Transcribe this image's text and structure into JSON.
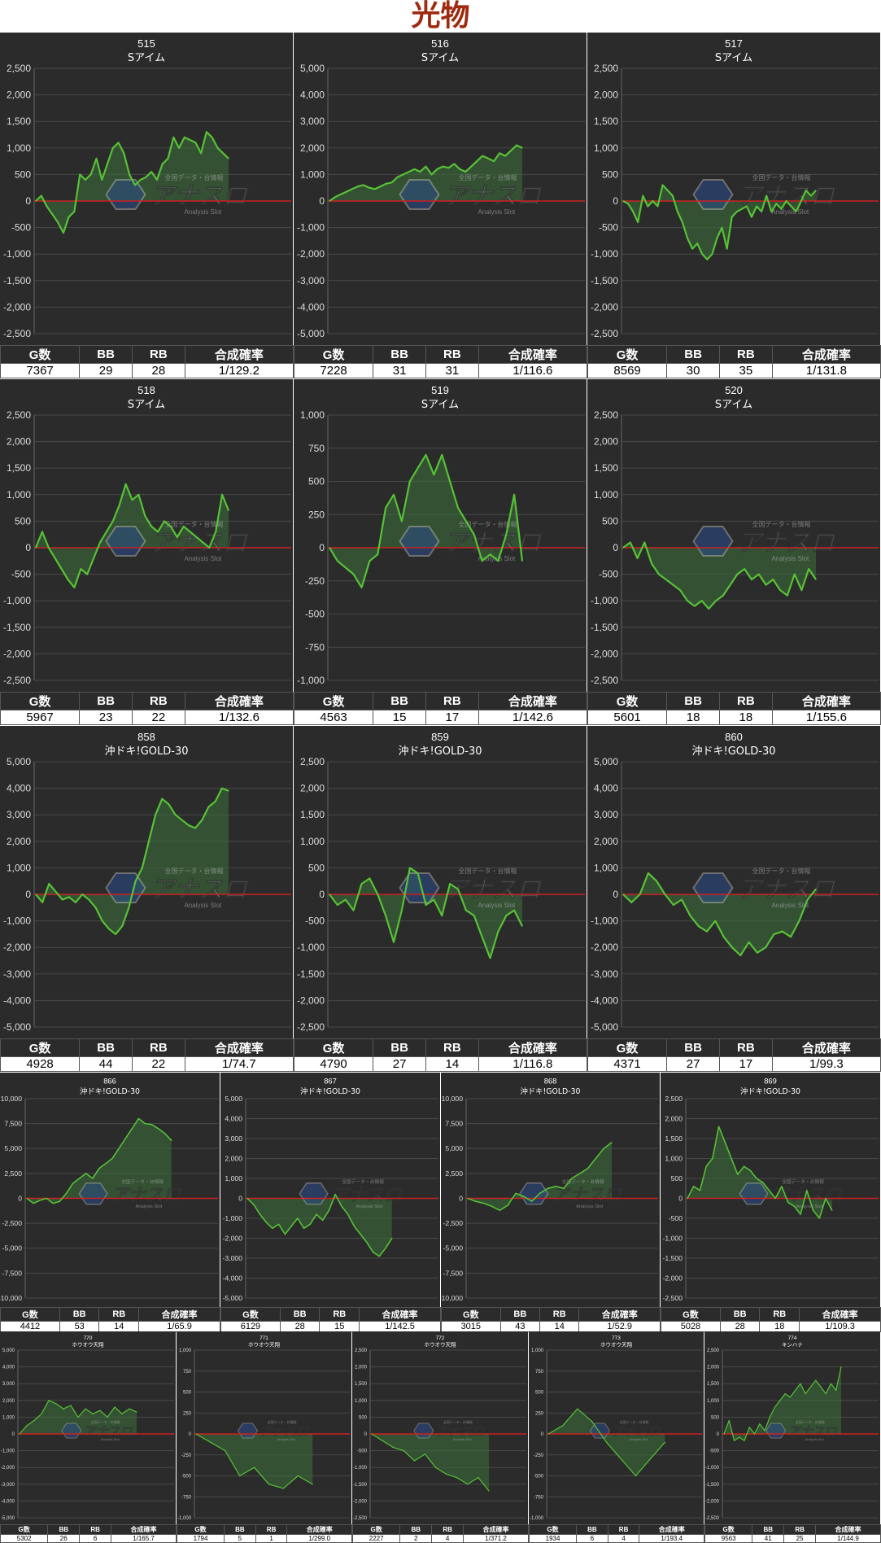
{
  "page": {
    "title": "光物"
  },
  "stats_header": {
    "g": "G数",
    "bb": "BB",
    "rb": "RB",
    "prob": "合成確率"
  },
  "watermark": {
    "text": "アナスロ",
    "sub": "Analysis Slot",
    "top": "全国データ・台情報"
  },
  "colors": {
    "background": "#2b2b2b",
    "line": "#57c236",
    "zero_line": "#cc2222",
    "fill": "#3a6b3a",
    "grid": "#4a4a4a",
    "title_color": "#9e2a10"
  },
  "chart_data": [
    {
      "type": "area",
      "machine_no": "515",
      "machine_name": "Sアイム",
      "ylim": [
        -2500,
        2500
      ],
      "yticks": [
        "2,500",
        "2,000",
        "1,500",
        "1,000",
        "500",
        "0",
        "-500",
        "-1,000",
        "-1,500",
        "-2,000",
        "-2,500"
      ],
      "stats": {
        "g": "7367",
        "bb": "29",
        "rb": "28",
        "prob": "1/129.2"
      },
      "values": [
        0,
        100,
        -100,
        -250,
        -400,
        -600,
        -300,
        -200,
        500,
        400,
        500,
        800,
        400,
        700,
        1000,
        1100,
        900,
        500,
        300,
        400,
        450,
        550,
        400,
        700,
        800,
        1200,
        1000,
        1200,
        1150,
        1100,
        900,
        1300,
        1200,
        1000,
        900,
        800
      ]
    },
    {
      "type": "area",
      "machine_no": "516",
      "machine_name": "Sアイム",
      "ylim": [
        -5000,
        5000
      ],
      "yticks": [
        "5,000",
        "4,000",
        "3,000",
        "2,000",
        "1,000",
        "0",
        "-1,000",
        "-2,000",
        "-3,000",
        "-4,000",
        "-5,000"
      ],
      "stats": {
        "g": "7228",
        "bb": "31",
        "rb": "31",
        "prob": "1/116.6"
      },
      "values": [
        0,
        150,
        250,
        350,
        450,
        550,
        600,
        500,
        450,
        550,
        650,
        700,
        900,
        1000,
        1100,
        1200,
        1100,
        1300,
        1000,
        1200,
        1300,
        1250,
        1400,
        1200,
        1100,
        1300,
        1500,
        1700,
        1600,
        1500,
        1800,
        1700,
        1900,
        2100,
        2000
      ]
    },
    {
      "type": "area",
      "machine_no": "517",
      "machine_name": "Sアイム",
      "ylim": [
        -2500,
        2500
      ],
      "yticks": [
        "2,500",
        "2,000",
        "1,500",
        "1,000",
        "500",
        "0",
        "-500",
        "-1,000",
        "-1,500",
        "-2,000",
        "-2,500"
      ],
      "stats": {
        "g": "8569",
        "bb": "30",
        "rb": "35",
        "prob": "1/131.8"
      },
      "values": [
        0,
        -50,
        -200,
        -400,
        100,
        -100,
        0,
        -100,
        300,
        200,
        100,
        -200,
        -400,
        -700,
        -900,
        -800,
        -1000,
        -1100,
        -1000,
        -700,
        -500,
        -900,
        -300,
        -200,
        -150,
        -100,
        -300,
        -100,
        -200,
        100,
        -200,
        -50,
        -150,
        0,
        -100,
        -200,
        0,
        200,
        100,
        200
      ]
    },
    {
      "type": "area",
      "machine_no": "518",
      "machine_name": "Sアイム",
      "ylim": [
        -2500,
        2500
      ],
      "yticks": [
        "2,500",
        "2,000",
        "1,500",
        "1,000",
        "500",
        "0",
        "-500",
        "-1,000",
        "-1,500",
        "-2,000",
        "-2,500"
      ],
      "stats": {
        "g": "5967",
        "bb": "23",
        "rb": "22",
        "prob": "1/132.6"
      },
      "values": [
        0,
        300,
        0,
        -200,
        -400,
        -600,
        -750,
        -400,
        -500,
        -200,
        100,
        300,
        500,
        800,
        1200,
        900,
        1000,
        600,
        400,
        300,
        500,
        400,
        200,
        400,
        300,
        200,
        100,
        0,
        300,
        1000,
        700
      ]
    },
    {
      "type": "area",
      "machine_no": "519",
      "machine_name": "Sアイム",
      "ylim": [
        -1000,
        1000
      ],
      "yticks": [
        "1,000",
        "750",
        "500",
        "250",
        "0",
        "-250",
        "-500",
        "-750",
        "-1,000"
      ],
      "stats": {
        "g": "4563",
        "bb": "15",
        "rb": "17",
        "prob": "1/142.6"
      },
      "values": [
        0,
        -100,
        -150,
        -200,
        -300,
        -100,
        -50,
        300,
        400,
        200,
        500,
        600,
        700,
        550,
        700,
        500,
        300,
        200,
        100,
        -100,
        -50,
        -100,
        100,
        400,
        -100
      ]
    },
    {
      "type": "area",
      "machine_no": "520",
      "machine_name": "Sアイム",
      "ylim": [
        -2500,
        2500
      ],
      "yticks": [
        "2,500",
        "2,000",
        "1,500",
        "1,000",
        "500",
        "0",
        "-500",
        "-1,000",
        "-1,500",
        "-2,000",
        "-2,500"
      ],
      "stats": {
        "g": "5601",
        "bb": "18",
        "rb": "18",
        "prob": "1/155.6"
      },
      "values": [
        0,
        100,
        -200,
        100,
        -300,
        -500,
        -600,
        -700,
        -800,
        -1000,
        -1100,
        -1000,
        -1150,
        -1000,
        -900,
        -700,
        -500,
        -400,
        -600,
        -500,
        -700,
        -600,
        -800,
        -900,
        -500,
        -800,
        -400,
        -600
      ]
    },
    {
      "type": "area",
      "machine_no": "858",
      "machine_name": "沖ドキ!GOLD-30",
      "ylim": [
        -5000,
        5000
      ],
      "yticks": [
        "5,000",
        "4,000",
        "3,000",
        "2,000",
        "1,000",
        "0",
        "-1,000",
        "-2,000",
        "-3,000",
        "-4,000",
        "-5,000"
      ],
      "stats": {
        "g": "4928",
        "bb": "44",
        "rb": "22",
        "prob": "1/74.7"
      },
      "values": [
        0,
        -300,
        400,
        100,
        -200,
        -100,
        -300,
        0,
        -200,
        -500,
        -1000,
        -1300,
        -1500,
        -1200,
        -500,
        500,
        1000,
        2000,
        3000,
        3600,
        3400,
        3000,
        2800,
        2600,
        2500,
        2800,
        3300,
        3500,
        4000,
        3900
      ]
    },
    {
      "type": "area",
      "machine_no": "859",
      "machine_name": "沖ドキ!GOLD-30",
      "ylim": [
        -2500,
        2500
      ],
      "yticks": [
        "2,500",
        "2,000",
        "1,500",
        "1,000",
        "500",
        "0",
        "-500",
        "-1,000",
        "-1,500",
        "-2,000",
        "-2,500"
      ],
      "stats": {
        "g": "4790",
        "bb": "27",
        "rb": "14",
        "prob": "1/116.8"
      },
      "values": [
        0,
        -200,
        -100,
        -300,
        200,
        300,
        0,
        -400,
        -900,
        -300,
        500,
        400,
        -200,
        -100,
        -400,
        200,
        100,
        -300,
        -400,
        -800,
        -1200,
        -700,
        -400,
        -300,
        -600
      ]
    },
    {
      "type": "area",
      "machine_no": "860",
      "machine_name": "沖ドキ!GOLD-30",
      "ylim": [
        -5000,
        5000
      ],
      "yticks": [
        "5,000",
        "4,000",
        "3,000",
        "2,000",
        "1,000",
        "0",
        "-1,000",
        "-2,000",
        "-3,000",
        "-4,000",
        "-5,000"
      ],
      "stats": {
        "g": "4371",
        "bb": "27",
        "rb": "17",
        "prob": "1/99.3"
      },
      "values": [
        0,
        -300,
        0,
        800,
        500,
        0,
        -400,
        -200,
        -800,
        -1200,
        -1400,
        -1000,
        -1600,
        -2000,
        -2300,
        -1800,
        -2200,
        -2000,
        -1500,
        -1400,
        -1600,
        -1000,
        -200,
        200
      ]
    },
    {
      "type": "area",
      "machine_no": "866",
      "machine_name": "沖ドキ!GOLD-30",
      "ylim": [
        -10000,
        10000
      ],
      "yticks": [
        "10,000",
        "7,500",
        "5,000",
        "2,500",
        "0",
        "-2,500",
        "-5,000",
        "-7,500",
        "-10,000"
      ],
      "stats": {
        "g": "4412",
        "bb": "53",
        "rb": "14",
        "prob": "1/65.9"
      },
      "values": [
        0,
        -500,
        -200,
        0,
        -500,
        -300,
        500,
        1500,
        2000,
        2500,
        2000,
        3000,
        3500,
        4000,
        5000,
        6000,
        7000,
        8000,
        7500,
        7400,
        7000,
        6500,
        5800
      ]
    },
    {
      "type": "area",
      "machine_no": "867",
      "machine_name": "沖ドキ!GOLD-30",
      "ylim": [
        -5000,
        5000
      ],
      "yticks": [
        "5,000",
        "4,000",
        "3,000",
        "2,000",
        "1,000",
        "0",
        "-1,000",
        "-2,000",
        "-3,000",
        "-4,000",
        "-5,000"
      ],
      "stats": {
        "g": "6129",
        "bb": "28",
        "rb": "15",
        "prob": "1/142.5"
      },
      "values": [
        0,
        -300,
        -800,
        -1200,
        -1500,
        -1300,
        -1800,
        -1400,
        -1000,
        -1500,
        -1300,
        -800,
        -1100,
        -600,
        200,
        -400,
        -800,
        -1400,
        -1800,
        -2200,
        -2700,
        -2900,
        -2500,
        -2000
      ]
    },
    {
      "type": "area",
      "machine_no": "868",
      "machine_name": "沖ドキ!GOLD-30",
      "ylim": [
        -10000,
        10000
      ],
      "yticks": [
        "10,000",
        "7,500",
        "5,000",
        "2,500",
        "0",
        "-2,500",
        "-5,000",
        "-7,500",
        "-10,000"
      ],
      "stats": {
        "g": "3015",
        "bb": "43",
        "rb": "14",
        "prob": "1/52.9"
      },
      "values": [
        0,
        -300,
        -500,
        -800,
        -1200,
        -700,
        500,
        200,
        -300,
        500,
        1000,
        1200,
        1000,
        2000,
        2500,
        3000,
        4000,
        5000,
        5600
      ]
    },
    {
      "type": "area",
      "machine_no": "869",
      "machine_name": "沖ドキ!GOLD-30",
      "ylim": [
        -2500,
        2500
      ],
      "yticks": [
        "2,500",
        "2,000",
        "1,500",
        "1,000",
        "500",
        "0",
        "-500",
        "-1,000",
        "-1,500",
        "-2,000",
        "-2,500"
      ],
      "stats": {
        "g": "5028",
        "bb": "28",
        "rb": "18",
        "prob": "1/109.3"
      },
      "values": [
        0,
        300,
        200,
        800,
        1000,
        1800,
        1400,
        1000,
        600,
        800,
        700,
        500,
        400,
        200,
        0,
        300,
        -100,
        -200,
        -400,
        200,
        -300,
        -500,
        0,
        -300
      ]
    },
    {
      "type": "area",
      "machine_no": "770",
      "machine_name": "ホウオウ天翔",
      "ylim": [
        -5000,
        5000
      ],
      "yticks": [
        "5,000",
        "4,000",
        "3,000",
        "2,000",
        "1,000",
        "0",
        "-1,000",
        "-2,000",
        "-3,000",
        "-4,000",
        "-5,000"
      ],
      "stats": {
        "g": "5302",
        "bb": "26",
        "rb": "6",
        "prob": "1/165.7"
      },
      "values": [
        0,
        500,
        800,
        1200,
        2000,
        1800,
        1500,
        1700,
        1000,
        1500,
        1200,
        1400,
        1000,
        1600,
        1200,
        1500,
        1300
      ]
    },
    {
      "type": "area",
      "machine_no": "771",
      "machine_name": "ホウオウ天翔",
      "ylim": [
        -1000,
        1000
      ],
      "yticks": [
        "1,000",
        "750",
        "500",
        "250",
        "0",
        "-250",
        "-500",
        "-750",
        "-1,000"
      ],
      "stats": {
        "g": "1794",
        "bb": "5",
        "rb": "1",
        "prob": "1/299.0"
      },
      "values": [
        0,
        -100,
        -200,
        -500,
        -400,
        -600,
        -650,
        -500,
        -600
      ]
    },
    {
      "type": "area",
      "machine_no": "772",
      "machine_name": "ホウオウ天翔",
      "ylim": [
        -2500,
        2500
      ],
      "yticks": [
        "2,500",
        "2,000",
        "1,500",
        "1,000",
        "500",
        "0",
        "-500",
        "-1,000",
        "-1,500",
        "-2,000",
        "-2,500"
      ],
      "stats": {
        "g": "2227",
        "bb": "2",
        "rb": "4",
        "prob": "1/371.2"
      },
      "values": [
        0,
        -200,
        -400,
        -500,
        -800,
        -600,
        -1000,
        -1200,
        -1300,
        -1500,
        -1300,
        -1700
      ]
    },
    {
      "type": "area",
      "machine_no": "773",
      "machine_name": "ホウオウ天翔",
      "ylim": [
        -1000,
        1000
      ],
      "yticks": [
        "1,000",
        "750",
        "500",
        "250",
        "0",
        "-250",
        "-500",
        "-750",
        "-1,000"
      ],
      "stats": {
        "g": "1934",
        "bb": "6",
        "rb": "4",
        "prob": "1/193.4"
      },
      "values": [
        0,
        100,
        300,
        150,
        -100,
        -300,
        -500,
        -300,
        -100
      ]
    },
    {
      "type": "area",
      "machine_no": "774",
      "machine_name": "キンハナ",
      "ylim": [
        -2500,
        2500
      ],
      "yticks": [
        "2,500",
        "2,000",
        "1,500",
        "1,000",
        "500",
        "0",
        "-500",
        "-1,000",
        "-1,500",
        "-2,000",
        "-2,500"
      ],
      "stats": {
        "g": "9563",
        "bb": "41",
        "rb": "25",
        "prob": "1/144.9"
      },
      "values": [
        0,
        400,
        -200,
        -100,
        -200,
        200,
        0,
        300,
        100,
        500,
        800,
        1000,
        1200,
        1100,
        1300,
        1500,
        1200,
        1400,
        1600,
        1400,
        1200,
        1500,
        1300,
        2000
      ]
    }
  ]
}
